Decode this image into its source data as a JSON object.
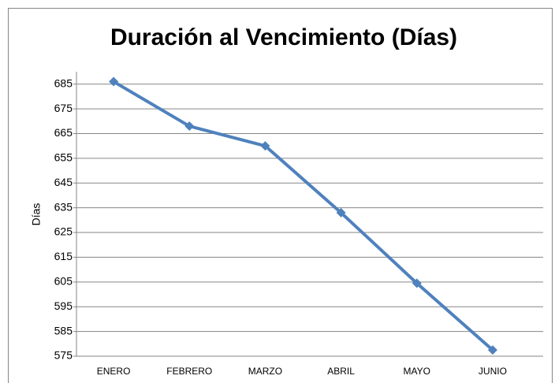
{
  "chart_data": {
    "type": "line",
    "title": "Duración al Vencimiento (Días)",
    "y_label": "Días",
    "categories": [
      "ENERO",
      "FEBRERO",
      "MARZO",
      "ABRIL",
      "MAYO",
      "JUNIO"
    ],
    "values": [
      686,
      668,
      660,
      633,
      604.5,
      577.5
    ],
    "color": "#4f81bd",
    "ylim": [
      575,
      690
    ],
    "yticks": [
      575,
      585,
      595,
      605,
      615,
      625,
      635,
      645,
      655,
      665,
      675,
      685
    ],
    "grid": true
  }
}
